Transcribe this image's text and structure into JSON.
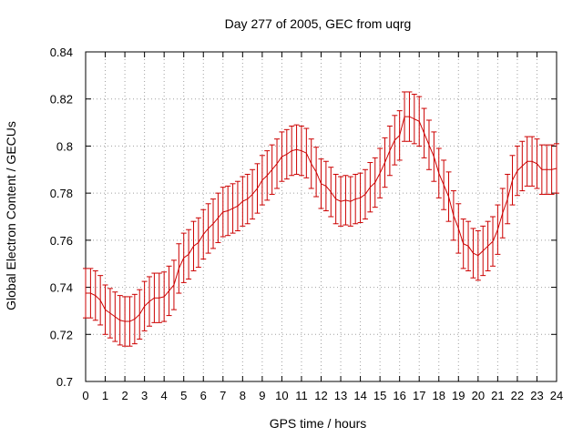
{
  "chart_data": {
    "type": "line",
    "style": "errorbars",
    "title": "Day 277 of 2005, GEC from uqrg",
    "xlabel": "GPS time / hours",
    "ylabel": "Global Electron Content / GECUs",
    "xlim": [
      0,
      24
    ],
    "ylim": [
      0.7,
      0.84
    ],
    "grid": true,
    "xticks": [
      "0",
      "1",
      "2",
      "3",
      "4",
      "5",
      "6",
      "7",
      "8",
      "9",
      "10",
      "11",
      "12",
      "13",
      "14",
      "15",
      "16",
      "17",
      "18",
      "19",
      "20",
      "21",
      "22",
      "23",
      "24"
    ],
    "yticks": [
      "0.7",
      "0.72",
      "0.74",
      "0.76",
      "0.78",
      "0.8",
      "0.82",
      "0.84"
    ],
    "error": 0.0105,
    "series": [
      {
        "name": "GEC",
        "color": "#cc0000",
        "x": [
          0,
          0.25,
          0.5,
          0.75,
          1,
          1.25,
          1.5,
          1.75,
          2,
          2.25,
          2.5,
          2.75,
          3,
          3.25,
          3.5,
          3.75,
          4,
          4.25,
          4.5,
          4.75,
          5,
          5.25,
          5.5,
          5.75,
          6,
          6.25,
          6.5,
          6.75,
          7,
          7.25,
          7.5,
          7.75,
          8,
          8.25,
          8.5,
          8.75,
          9,
          9.25,
          9.5,
          9.75,
          10,
          10.25,
          10.5,
          10.75,
          11,
          11.25,
          11.5,
          11.75,
          12,
          12.25,
          12.5,
          12.75,
          13,
          13.25,
          13.5,
          13.75,
          14,
          14.25,
          14.5,
          14.75,
          15,
          15.25,
          15.5,
          15.75,
          16,
          16.25,
          16.5,
          16.75,
          17,
          17.25,
          17.5,
          17.75,
          18,
          18.25,
          18.5,
          18.75,
          19,
          19.25,
          19.5,
          19.75,
          20,
          20.25,
          20.5,
          20.75,
          21,
          21.25,
          21.5,
          21.75,
          22,
          22.25,
          22.5,
          22.75,
          23,
          23.25,
          23.5,
          23.75,
          24
        ],
        "y": [
          0.7375,
          0.7375,
          0.7365,
          0.7345,
          0.7305,
          0.729,
          0.7275,
          0.726,
          0.7255,
          0.7255,
          0.7265,
          0.7285,
          0.732,
          0.734,
          0.7355,
          0.7355,
          0.736,
          0.7385,
          0.741,
          0.748,
          0.7525,
          0.754,
          0.7575,
          0.759,
          0.7625,
          0.765,
          0.767,
          0.7695,
          0.772,
          0.7725,
          0.7735,
          0.7745,
          0.7765,
          0.7775,
          0.7795,
          0.782,
          0.7855,
          0.7875,
          0.79,
          0.7925,
          0.7955,
          0.7965,
          0.798,
          0.7985,
          0.798,
          0.797,
          0.7925,
          0.789,
          0.784,
          0.783,
          0.7805,
          0.7775,
          0.7765,
          0.777,
          0.7765,
          0.7775,
          0.778,
          0.7795,
          0.7825,
          0.7845,
          0.7885,
          0.793,
          0.798,
          0.8025,
          0.8045,
          0.8125,
          0.8125,
          0.8115,
          0.8105,
          0.8055,
          0.8005,
          0.7955,
          0.7885,
          0.7835,
          0.7785,
          0.7705,
          0.765,
          0.7585,
          0.7575,
          0.7545,
          0.7535,
          0.7555,
          0.7575,
          0.7595,
          0.7645,
          0.7715,
          0.7775,
          0.7855,
          0.7895,
          0.7915,
          0.7935,
          0.7935,
          0.7925,
          0.79,
          0.79,
          0.79,
          0.7905
        ]
      }
    ]
  }
}
